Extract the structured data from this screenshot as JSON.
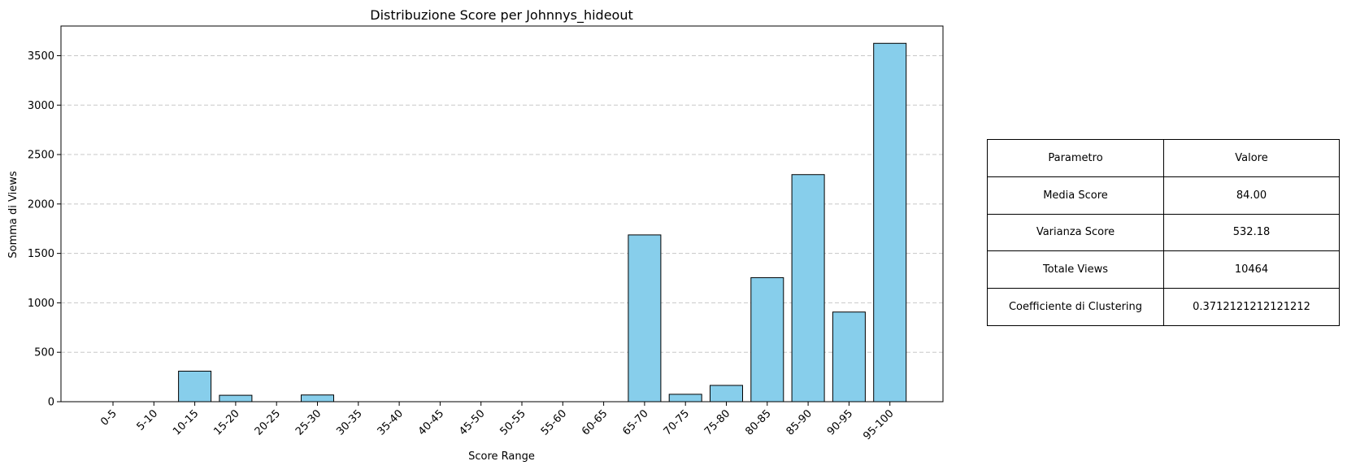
{
  "chart_data": {
    "type": "bar",
    "title": "Distribuzione Score per Johnnys_hideout",
    "xlabel": "Score Range",
    "ylabel": "Somma di Views",
    "categories": [
      "0-5",
      "5-10",
      "10-15",
      "15-20",
      "20-25",
      "25-30",
      "30-35",
      "35-40",
      "40-45",
      "45-50",
      "50-55",
      "55-60",
      "60-65",
      "65-70",
      "70-75",
      "75-80",
      "80-85",
      "85-90",
      "90-95",
      "95-100"
    ],
    "values": [
      0,
      0,
      309,
      65,
      0,
      68,
      0,
      0,
      0,
      0,
      0,
      0,
      0,
      1687,
      75,
      165,
      1255,
      2297,
      907,
      3625
    ],
    "ylim": [
      0,
      3800
    ],
    "yticks": [
      0,
      500,
      1000,
      1500,
      2000,
      2500,
      3000,
      3500
    ],
    "grid": "y-dashed",
    "bar_color": "#87ceeb",
    "edge_color": "#000000"
  },
  "table": {
    "header": [
      "Parametro",
      "Valore"
    ],
    "rows": [
      [
        "Media Score",
        "84.00"
      ],
      [
        "Varianza Score",
        "532.18"
      ],
      [
        "Totale Views",
        "10464"
      ],
      [
        "Coefficiente di Clustering",
        "0.3712121212121212"
      ]
    ]
  }
}
